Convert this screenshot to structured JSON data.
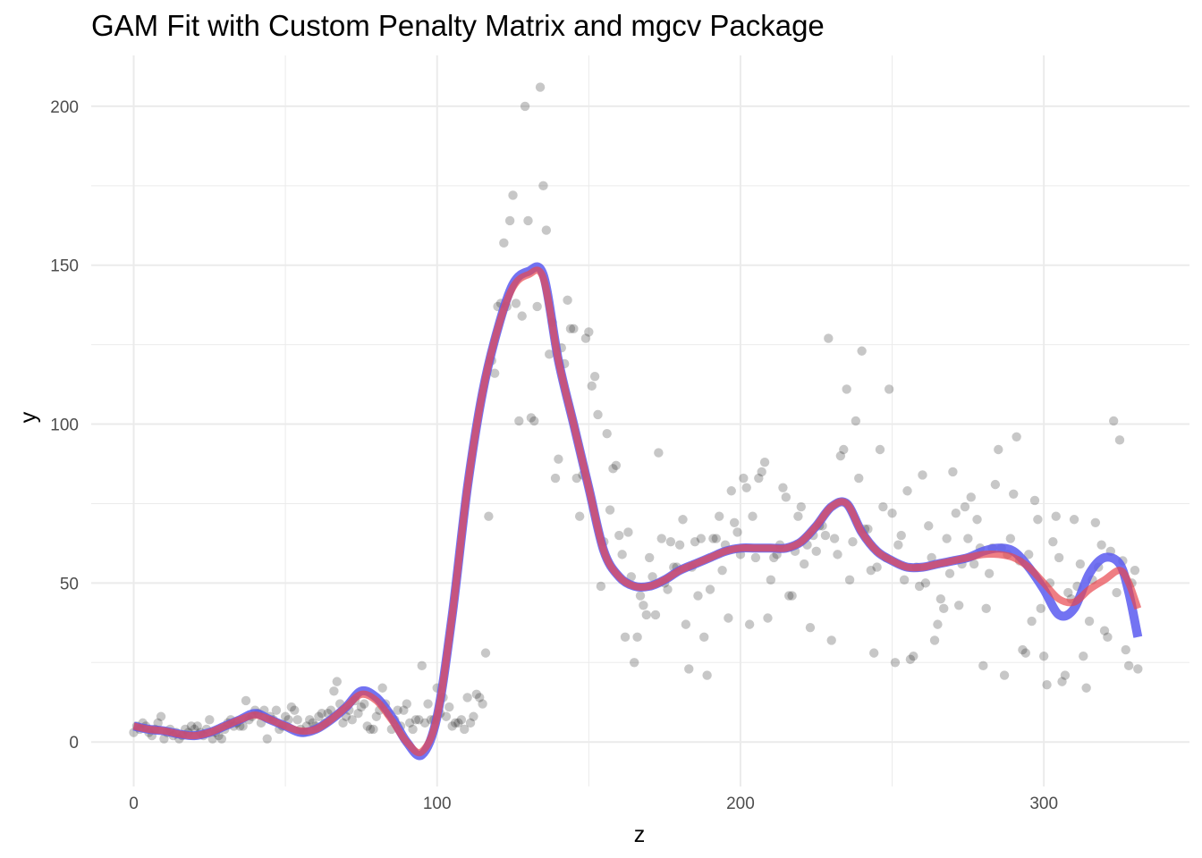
{
  "chart_data": {
    "type": "scatter",
    "title": "GAM Fit with Custom Penalty Matrix and mgcv Package",
    "xlabel": "z",
    "ylabel": "y",
    "xlim": [
      -14,
      348
    ],
    "ylim": [
      -14,
      216
    ],
    "x_ticks": [
      0,
      100,
      200,
      300
    ],
    "y_ticks": [
      0,
      50,
      100,
      150,
      200
    ],
    "grid": true,
    "colors": {
      "points": "#000000",
      "fit_mgcv": "#5a5af0",
      "fit_custom": "#e8474f"
    },
    "points": [
      [
        0,
        3
      ],
      [
        1,
        5
      ],
      [
        2,
        4
      ],
      [
        3,
        6
      ],
      [
        4,
        5
      ],
      [
        5,
        3
      ],
      [
        6,
        2
      ],
      [
        7,
        4
      ],
      [
        8,
        6
      ],
      [
        9,
        8
      ],
      [
        10,
        1
      ],
      [
        11,
        3
      ],
      [
        12,
        4
      ],
      [
        13,
        2
      ],
      [
        14,
        3
      ],
      [
        15,
        1
      ],
      [
        16,
        2
      ],
      [
        17,
        4
      ],
      [
        18,
        3
      ],
      [
        19,
        5
      ],
      [
        20,
        4
      ],
      [
        21,
        5
      ],
      [
        22,
        3
      ],
      [
        23,
        2
      ],
      [
        24,
        4
      ],
      [
        25,
        7
      ],
      [
        26,
        1
      ],
      [
        27,
        3
      ],
      [
        28,
        2
      ],
      [
        29,
        1
      ],
      [
        30,
        4
      ],
      [
        31,
        6
      ],
      [
        32,
        7
      ],
      [
        33,
        5
      ],
      [
        34,
        6
      ],
      [
        35,
        5
      ],
      [
        36,
        5
      ],
      [
        37,
        13
      ],
      [
        38,
        7
      ],
      [
        39,
        8
      ],
      [
        40,
        10
      ],
      [
        41,
        9
      ],
      [
        42,
        6
      ],
      [
        43,
        10
      ],
      [
        44,
        1
      ],
      [
        45,
        8
      ],
      [
        46,
        7
      ],
      [
        47,
        10
      ],
      [
        48,
        4
      ],
      [
        49,
        5
      ],
      [
        50,
        8
      ],
      [
        51,
        7
      ],
      [
        52,
        11
      ],
      [
        53,
        10
      ],
      [
        54,
        7
      ],
      [
        55,
        4
      ],
      [
        56,
        3
      ],
      [
        57,
        5
      ],
      [
        58,
        7
      ],
      [
        59,
        6
      ],
      [
        60,
        5
      ],
      [
        61,
        8
      ],
      [
        62,
        9
      ],
      [
        63,
        6
      ],
      [
        64,
        9
      ],
      [
        65,
        10
      ],
      [
        66,
        16
      ],
      [
        67,
        19
      ],
      [
        68,
        12
      ],
      [
        69,
        6
      ],
      [
        70,
        8
      ],
      [
        71,
        10
      ],
      [
        72,
        7
      ],
      [
        73,
        13
      ],
      [
        74,
        9
      ],
      [
        75,
        11
      ],
      [
        76,
        12
      ],
      [
        77,
        5
      ],
      [
        78,
        4
      ],
      [
        79,
        4
      ],
      [
        80,
        8
      ],
      [
        81,
        10
      ],
      [
        82,
        17
      ],
      [
        83,
        12
      ],
      [
        84,
        9
      ],
      [
        85,
        4
      ],
      [
        86,
        7
      ],
      [
        87,
        10
      ],
      [
        88,
        5
      ],
      [
        89,
        10
      ],
      [
        90,
        12
      ],
      [
        91,
        6
      ],
      [
        92,
        4
      ],
      [
        93,
        7
      ],
      [
        94,
        7
      ],
      [
        95,
        24
      ],
      [
        96,
        6
      ],
      [
        97,
        12
      ],
      [
        98,
        7
      ],
      [
        99,
        7
      ],
      [
        100,
        17
      ],
      [
        101,
        9
      ],
      [
        102,
        14
      ],
      [
        103,
        8
      ],
      [
        104,
        11
      ],
      [
        105,
        5
      ],
      [
        106,
        6
      ],
      [
        107,
        6
      ],
      [
        108,
        7
      ],
      [
        109,
        4
      ],
      [
        110,
        14
      ],
      [
        111,
        6
      ],
      [
        112,
        8
      ],
      [
        113,
        15
      ],
      [
        114,
        14
      ],
      [
        115,
        12
      ],
      [
        116,
        28
      ],
      [
        117,
        71
      ],
      [
        118,
        120
      ],
      [
        119,
        116
      ],
      [
        120,
        137
      ],
      [
        121,
        138
      ],
      [
        122,
        157
      ],
      [
        123,
        137
      ],
      [
        124,
        164
      ],
      [
        125,
        172
      ],
      [
        126,
        138
      ],
      [
        127,
        101
      ],
      [
        128,
        134
      ],
      [
        129,
        200
      ],
      [
        130,
        164
      ],
      [
        131,
        102
      ],
      [
        132,
        101
      ],
      [
        133,
        137
      ],
      [
        134,
        206
      ],
      [
        135,
        175
      ],
      [
        136,
        161
      ],
      [
        137,
        122
      ],
      [
        138,
        132
      ],
      [
        139,
        83
      ],
      [
        140,
        89
      ],
      [
        141,
        124
      ],
      [
        142,
        119
      ],
      [
        143,
        139
      ],
      [
        144,
        130
      ],
      [
        145,
        130
      ],
      [
        146,
        83
      ],
      [
        147,
        71
      ],
      [
        148,
        84
      ],
      [
        149,
        127
      ],
      [
        150,
        129
      ],
      [
        151,
        112
      ],
      [
        152,
        115
      ],
      [
        153,
        103
      ],
      [
        154,
        49
      ],
      [
        155,
        63
      ],
      [
        156,
        97
      ],
      [
        157,
        73
      ],
      [
        158,
        86
      ],
      [
        159,
        87
      ],
      [
        160,
        65
      ],
      [
        161,
        59
      ],
      [
        162,
        33
      ],
      [
        163,
        66
      ],
      [
        164,
        52
      ],
      [
        165,
        25
      ],
      [
        166,
        33
      ],
      [
        167,
        46
      ],
      [
        168,
        43
      ],
      [
        169,
        40
      ],
      [
        170,
        58
      ],
      [
        171,
        52
      ],
      [
        172,
        40
      ],
      [
        173,
        91
      ],
      [
        174,
        64
      ],
      [
        175,
        50
      ],
      [
        176,
        48
      ],
      [
        177,
        63
      ],
      [
        178,
        55
      ],
      [
        179,
        55
      ],
      [
        180,
        62
      ],
      [
        181,
        70
      ],
      [
        182,
        37
      ],
      [
        183,
        23
      ],
      [
        184,
        55
      ],
      [
        185,
        63
      ],
      [
        186,
        46
      ],
      [
        187,
        64
      ],
      [
        188,
        33
      ],
      [
        189,
        21
      ],
      [
        190,
        48
      ],
      [
        191,
        64
      ],
      [
        192,
        64
      ],
      [
        193,
        71
      ],
      [
        194,
        54
      ],
      [
        195,
        62
      ],
      [
        196,
        39
      ],
      [
        197,
        79
      ],
      [
        198,
        69
      ],
      [
        199,
        66
      ],
      [
        200,
        59
      ],
      [
        201,
        83
      ],
      [
        202,
        80
      ],
      [
        203,
        37
      ],
      [
        204,
        71
      ],
      [
        205,
        58
      ],
      [
        206,
        83
      ],
      [
        207,
        85
      ],
      [
        208,
        88
      ],
      [
        209,
        39
      ],
      [
        210,
        51
      ],
      [
        211,
        58
      ],
      [
        212,
        59
      ],
      [
        213,
        62
      ],
      [
        214,
        80
      ],
      [
        215,
        77
      ],
      [
        216,
        46
      ],
      [
        217,
        46
      ],
      [
        218,
        60
      ],
      [
        219,
        71
      ],
      [
        220,
        74
      ],
      [
        221,
        56
      ],
      [
        222,
        62
      ],
      [
        223,
        36
      ],
      [
        224,
        65
      ],
      [
        225,
        60
      ],
      [
        226,
        68
      ],
      [
        227,
        68
      ],
      [
        228,
        65
      ],
      [
        229,
        127
      ],
      [
        230,
        32
      ],
      [
        231,
        64
      ],
      [
        232,
        59
      ],
      [
        233,
        90
      ],
      [
        234,
        92
      ],
      [
        235,
        111
      ],
      [
        236,
        51
      ],
      [
        237,
        63
      ],
      [
        238,
        101
      ],
      [
        239,
        83
      ],
      [
        240,
        123
      ],
      [
        241,
        67
      ],
      [
        242,
        67
      ],
      [
        243,
        54
      ],
      [
        244,
        28
      ],
      [
        245,
        55
      ],
      [
        246,
        92
      ],
      [
        247,
        74
      ],
      [
        248,
        58
      ],
      [
        249,
        111
      ],
      [
        250,
        72
      ],
      [
        251,
        25
      ],
      [
        252,
        62
      ],
      [
        253,
        65
      ],
      [
        254,
        51
      ],
      [
        255,
        79
      ],
      [
        256,
        26
      ],
      [
        257,
        27
      ],
      [
        258,
        55
      ],
      [
        259,
        49
      ],
      [
        260,
        84
      ],
      [
        261,
        50
      ],
      [
        262,
        68
      ],
      [
        263,
        58
      ],
      [
        264,
        32
      ],
      [
        265,
        37
      ],
      [
        266,
        45
      ],
      [
        267,
        42
      ],
      [
        268,
        64
      ],
      [
        269,
        53
      ],
      [
        270,
        85
      ],
      [
        271,
        72
      ],
      [
        272,
        43
      ],
      [
        273,
        56
      ],
      [
        274,
        74
      ],
      [
        275,
        64
      ],
      [
        276,
        77
      ],
      [
        277,
        56
      ],
      [
        278,
        70
      ],
      [
        279,
        61
      ],
      [
        280,
        24
      ],
      [
        281,
        42
      ],
      [
        282,
        53
      ],
      [
        283,
        61
      ],
      [
        284,
        81
      ],
      [
        285,
        92
      ],
      [
        286,
        61
      ],
      [
        287,
        21
      ],
      [
        288,
        59
      ],
      [
        289,
        64
      ],
      [
        290,
        78
      ],
      [
        291,
        96
      ],
      [
        292,
        57
      ],
      [
        293,
        29
      ],
      [
        294,
        28
      ],
      [
        295,
        59
      ],
      [
        296,
        38
      ],
      [
        297,
        76
      ],
      [
        298,
        70
      ],
      [
        299,
        42
      ],
      [
        300,
        27
      ],
      [
        301,
        18
      ],
      [
        302,
        50
      ],
      [
        303,
        63
      ],
      [
        304,
        71
      ],
      [
        305,
        58
      ],
      [
        306,
        19
      ],
      [
        307,
        21
      ],
      [
        308,
        47
      ],
      [
        309,
        45
      ],
      [
        310,
        70
      ],
      [
        311,
        49
      ],
      [
        312,
        56
      ],
      [
        313,
        27
      ],
      [
        314,
        17
      ],
      [
        315,
        38
      ],
      [
        316,
        51
      ],
      [
        317,
        69
      ],
      [
        318,
        55
      ],
      [
        319,
        62
      ],
      [
        320,
        35
      ],
      [
        321,
        33
      ],
      [
        322,
        60
      ],
      [
        323,
        101
      ],
      [
        324,
        47
      ],
      [
        325,
        95
      ],
      [
        326,
        57
      ],
      [
        327,
        29
      ],
      [
        328,
        24
      ],
      [
        329,
        50
      ],
      [
        330,
        54
      ],
      [
        331,
        23
      ]
    ],
    "series": [
      {
        "key": "mgcv",
        "x": [
          0,
          5,
          10,
          15,
          20,
          25,
          30,
          35,
          40,
          45,
          50,
          55,
          60,
          65,
          70,
          75,
          80,
          85,
          90,
          95,
          100,
          105,
          110,
          115,
          120,
          125,
          130,
          135,
          140,
          145,
          150,
          155,
          160,
          165,
          170,
          175,
          180,
          185,
          190,
          195,
          200,
          205,
          210,
          215,
          220,
          225,
          230,
          235,
          240,
          245,
          250,
          255,
          260,
          265,
          270,
          275,
          280,
          285,
          290,
          295,
          300,
          305,
          310,
          315,
          320,
          325,
          328,
          331
        ],
        "y": [
          5,
          4,
          3.5,
          2.5,
          2,
          3,
          5,
          7,
          9,
          7,
          5,
          3,
          4,
          7,
          11,
          16,
          14,
          8,
          0,
          -4,
          8,
          40,
          80,
          110,
          130,
          144,
          148,
          147,
          120,
          100,
          80,
          60,
          52,
          49,
          49,
          51,
          54,
          56,
          58,
          60,
          61,
          61,
          61,
          61,
          63,
          68,
          74,
          75,
          66,
          60,
          57,
          55,
          55,
          56,
          57,
          58,
          60,
          61,
          60,
          55,
          48,
          40,
          42,
          53,
          58,
          56,
          47,
          33
        ]
      },
      {
        "key": "custom",
        "x": [
          0,
          5,
          10,
          15,
          20,
          25,
          30,
          35,
          40,
          45,
          50,
          55,
          60,
          65,
          70,
          75,
          80,
          85,
          90,
          95,
          100,
          105,
          110,
          115,
          120,
          125,
          130,
          135,
          140,
          145,
          150,
          155,
          160,
          165,
          170,
          175,
          180,
          185,
          190,
          195,
          200,
          205,
          210,
          215,
          220,
          225,
          230,
          235,
          240,
          245,
          250,
          255,
          260,
          265,
          270,
          275,
          280,
          285,
          290,
          295,
          300,
          305,
          310,
          315,
          320,
          325,
          328,
          331
        ],
        "y": [
          5,
          4,
          3.5,
          2.5,
          2,
          3,
          5,
          7,
          8.5,
          7,
          5,
          3.5,
          4,
          7,
          11,
          15,
          13,
          7,
          0,
          -3,
          8,
          40,
          80,
          110,
          130,
          143,
          147,
          146,
          120,
          100,
          80,
          60,
          52,
          49,
          49,
          51,
          54,
          56,
          58,
          60,
          61,
          61,
          61,
          61,
          63,
          68,
          74,
          75,
          66,
          60,
          57,
          55,
          55,
          56,
          57,
          58,
          59,
          59,
          58,
          55,
          50,
          45,
          44,
          48,
          51,
          54,
          50,
          42
        ]
      }
    ]
  }
}
